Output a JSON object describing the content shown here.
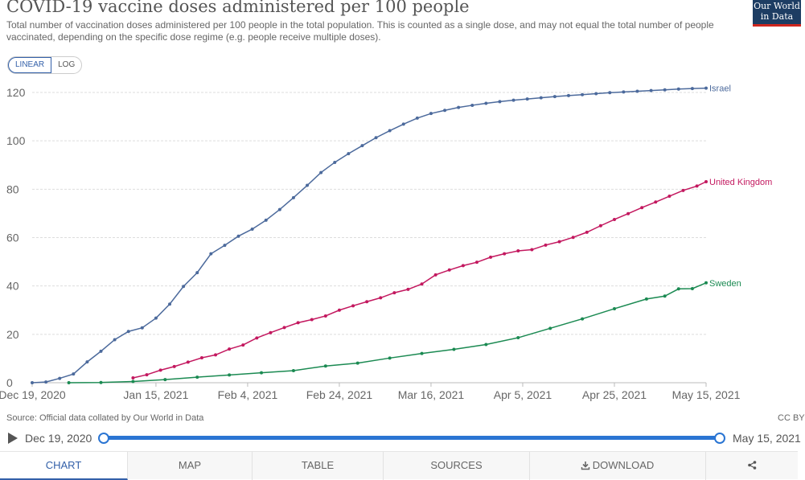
{
  "header": {
    "title": "COVID-19 vaccine doses administered per 100 people",
    "subtitle": "Total number of vaccination doses administered per 100 people in the total population. This is counted as a single dose, and may not equal the total number of people vaccinated, depending on the specific dose regime (e.g. people receive multiple doses).",
    "logo_line1": "Our World",
    "logo_line2": "in Data"
  },
  "scale_toggle": {
    "linear_label": "LINEAR",
    "log_label": "LOG"
  },
  "colors": {
    "israel": "#4c6a9c",
    "uk": "#c3185f",
    "sweden": "#1b8a52",
    "accent": "#3360a9"
  },
  "source": "Source: Official data collated by Our World in Data",
  "license": "CC BY",
  "timeline": {
    "start_label": "Dec 19, 2020",
    "end_label": "May 15, 2021"
  },
  "tabs": [
    {
      "label": "CHART"
    },
    {
      "label": "MAP"
    },
    {
      "label": "TABLE"
    },
    {
      "label": "SOURCES"
    },
    {
      "label": "DOWNLOAD"
    }
  ],
  "chart_data": {
    "type": "line",
    "x_type": "date",
    "xlim": [
      "2020-12-19",
      "2021-05-15"
    ],
    "ylim": [
      0,
      120
    ],
    "yticks": [
      0,
      20,
      40,
      60,
      80,
      100,
      120
    ],
    "xticks": [
      "Dec 19, 2020",
      "Jan 15, 2021",
      "Feb 4, 2021",
      "Feb 24, 2021",
      "Mar 16, 2021",
      "Apr 5, 2021",
      "Apr 25, 2021",
      "May 15, 2021"
    ],
    "xtick_dates": [
      "2020-12-19",
      "2021-01-15",
      "2021-02-04",
      "2021-02-24",
      "2021-03-16",
      "2021-04-05",
      "2021-04-25",
      "2021-05-15"
    ],
    "grid": true,
    "legend": "line-end labels",
    "series": [
      {
        "name": "Israel",
        "color": "#4c6a9c",
        "x": [
          "2020-12-19",
          "2020-12-22",
          "2020-12-25",
          "2020-12-28",
          "2020-12-31",
          "2021-01-03",
          "2021-01-06",
          "2021-01-09",
          "2021-01-12",
          "2021-01-15",
          "2021-01-18",
          "2021-01-21",
          "2021-01-24",
          "2021-01-27",
          "2021-01-30",
          "2021-02-02",
          "2021-02-05",
          "2021-02-08",
          "2021-02-11",
          "2021-02-14",
          "2021-02-17",
          "2021-02-20",
          "2021-02-23",
          "2021-02-26",
          "2021-03-01",
          "2021-03-04",
          "2021-03-07",
          "2021-03-10",
          "2021-03-13",
          "2021-03-16",
          "2021-03-19",
          "2021-03-22",
          "2021-03-25",
          "2021-03-28",
          "2021-03-31",
          "2021-04-03",
          "2021-04-06",
          "2021-04-09",
          "2021-04-12",
          "2021-04-15",
          "2021-04-18",
          "2021-04-21",
          "2021-04-24",
          "2021-04-27",
          "2021-04-30",
          "2021-05-03",
          "2021-05-06",
          "2021-05-09",
          "2021-05-12",
          "2021-05-15"
        ],
        "y": [
          0.0,
          0.3,
          1.8,
          3.6,
          8.6,
          13.0,
          17.8,
          21.2,
          22.7,
          26.7,
          32.5,
          39.8,
          45.5,
          53.3,
          56.8,
          60.6,
          63.5,
          67.2,
          71.6,
          76.5,
          81.6,
          86.9,
          91.1,
          94.7,
          98.0,
          101.3,
          104.2,
          106.9,
          109.4,
          111.3,
          112.6,
          113.8,
          114.7,
          115.5,
          116.2,
          116.8,
          117.3,
          117.8,
          118.3,
          118.7,
          119.1,
          119.5,
          119.9,
          120.2,
          120.5,
          120.8,
          121.1,
          121.4,
          121.6,
          121.8
        ]
      },
      {
        "name": "United Kingdom",
        "color": "#c3185f",
        "x": [
          "2021-01-10",
          "2021-01-13",
          "2021-01-16",
          "2021-01-19",
          "2021-01-22",
          "2021-01-25",
          "2021-01-28",
          "2021-01-31",
          "2021-02-03",
          "2021-02-06",
          "2021-02-09",
          "2021-02-12",
          "2021-02-15",
          "2021-02-18",
          "2021-02-21",
          "2021-02-24",
          "2021-02-27",
          "2021-03-02",
          "2021-03-05",
          "2021-03-08",
          "2021-03-11",
          "2021-03-14",
          "2021-03-17",
          "2021-03-20",
          "2021-03-23",
          "2021-03-26",
          "2021-03-29",
          "2021-04-01",
          "2021-04-04",
          "2021-04-07",
          "2021-04-10",
          "2021-04-13",
          "2021-04-16",
          "2021-04-19",
          "2021-04-22",
          "2021-04-25",
          "2021-04-28",
          "2021-05-01",
          "2021-05-04",
          "2021-05-07",
          "2021-05-10",
          "2021-05-13",
          "2021-05-15"
        ],
        "y": [
          2.0,
          3.3,
          5.2,
          6.7,
          8.5,
          10.3,
          11.5,
          13.9,
          15.6,
          18.5,
          20.7,
          22.8,
          24.8,
          26.1,
          27.6,
          30.0,
          31.8,
          33.5,
          35.1,
          37.2,
          38.6,
          40.8,
          44.6,
          46.6,
          48.4,
          49.8,
          51.9,
          53.3,
          54.5,
          55.0,
          56.9,
          58.3,
          60.1,
          62.2,
          64.9,
          67.5,
          69.9,
          72.4,
          74.7,
          77.1,
          79.5,
          81.3,
          83.1
        ]
      },
      {
        "name": "Sweden",
        "color": "#1b8a52",
        "x": [
          "2020-12-27",
          "2021-01-03",
          "2021-01-10",
          "2021-01-17",
          "2021-01-24",
          "2021-01-31",
          "2021-02-07",
          "2021-02-14",
          "2021-02-21",
          "2021-02-28",
          "2021-03-07",
          "2021-03-14",
          "2021-03-21",
          "2021-03-28",
          "2021-04-04",
          "2021-04-11",
          "2021-04-18",
          "2021-04-25",
          "2021-05-02",
          "2021-05-06",
          "2021-05-09",
          "2021-05-12",
          "2021-05-15"
        ],
        "y": [
          0.0,
          0.1,
          0.5,
          1.3,
          2.3,
          3.2,
          4.1,
          5.0,
          6.9,
          8.1,
          10.2,
          12.1,
          13.8,
          15.8,
          18.6,
          22.5,
          26.4,
          30.6,
          34.6,
          35.8,
          38.8,
          38.9,
          41.3
        ]
      }
    ]
  }
}
